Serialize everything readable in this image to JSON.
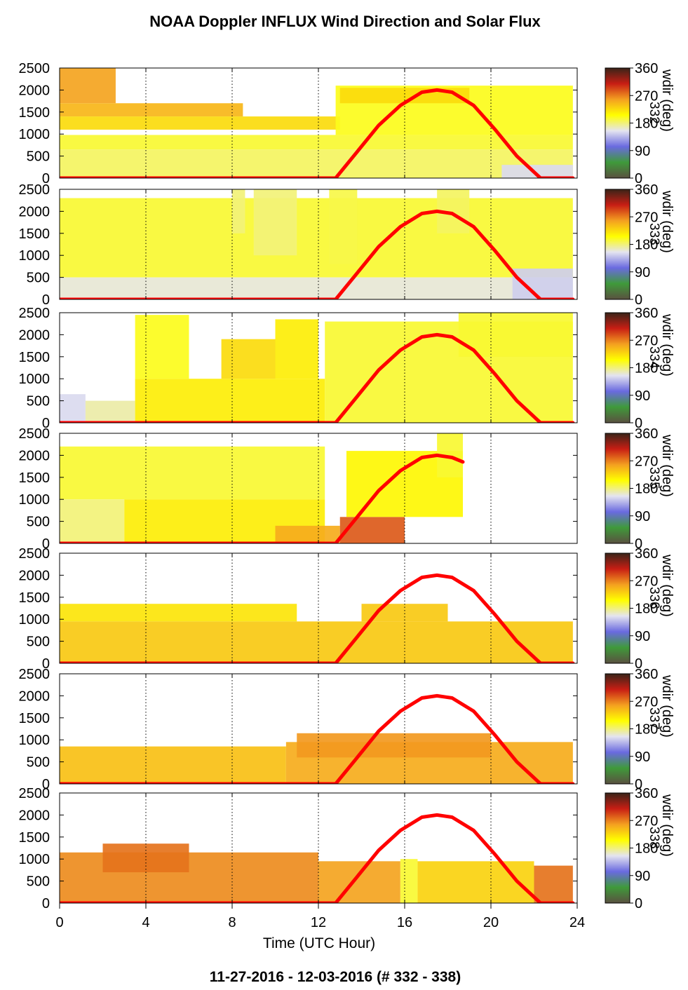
{
  "title": "NOAA Doppler INFLUX Wind Direction and Solar Flux",
  "footer": "11-27-2016 - 12-03-2016   (# 332 - 338)",
  "chart_data": {
    "type": "heatmap",
    "xlabel": "Time (UTC Hour)",
    "xlim": [
      0,
      24
    ],
    "x_ticks": [
      "0",
      "4",
      "8",
      "12",
      "16",
      "20",
      "24"
    ],
    "x_tick_values": [
      0,
      4,
      8,
      12,
      16,
      20,
      24
    ],
    "ylim": [
      0,
      2500
    ],
    "y_ticks": [
      "0",
      "500",
      "1000",
      "1500",
      "2000",
      "2500"
    ],
    "y_tick_values": [
      0,
      500,
      1000,
      1500,
      2000,
      2500
    ],
    "grid": "vertical dotted lines at 4, 8, 12, 16, 20, 24",
    "colorbar": {
      "label": "wdir (deg)",
      "ticks": [
        "0",
        "90",
        "180",
        "270",
        "360"
      ],
      "tick_values": [
        0,
        90,
        180,
        270,
        360
      ],
      "colors": [
        "#5a5040",
        "#3f9a3a",
        "#6a6ae0",
        "#e4e4f0",
        "#ffff00",
        "#f4a020",
        "#c81e14",
        "#3a2418"
      ]
    },
    "solar_flux_color": "#ff0000",
    "panels": [
      {
        "day_label": "332",
        "solar_flux": {
          "x": [
            0,
            12.8,
            13.8,
            14.8,
            15.8,
            16.8,
            17.5,
            18.2,
            19.2,
            20.2,
            21.2,
            22.3,
            23.8
          ],
          "y": [
            0,
            0,
            600,
            1200,
            1650,
            1950,
            2000,
            1950,
            1650,
            1100,
            500,
            0,
            0
          ]
        },
        "wind_direction": [
          {
            "x0": 0,
            "x1": 2.6,
            "y0": 1700,
            "y1": 2550,
            "wdir": 255
          },
          {
            "x0": 0,
            "x1": 8.5,
            "y0": 1400,
            "y1": 1700,
            "wdir": 245
          },
          {
            "x0": 0,
            "x1": 13,
            "y0": 1100,
            "y1": 1400,
            "wdir": 225
          },
          {
            "x0": 0,
            "x1": 23.8,
            "y0": 650,
            "y1": 980,
            "wdir": 195
          },
          {
            "x0": 0,
            "x1": 23.8,
            "y0": 0,
            "y1": 650,
            "wdir": 185
          },
          {
            "x0": 12.8,
            "x1": 23.8,
            "y0": 980,
            "y1": 2100,
            "wdir": 200
          },
          {
            "x0": 13,
            "x1": 19,
            "y0": 1700,
            "y1": 2050,
            "wdir": 225
          },
          {
            "x0": 20.5,
            "x1": 23.8,
            "y0": 0,
            "y1": 300,
            "wdir": 150
          }
        ]
      },
      {
        "day_label": "333",
        "solar_flux": {
          "x": [
            0,
            12.8,
            13.8,
            14.8,
            15.8,
            16.8,
            17.5,
            18.2,
            19.2,
            20.2,
            21.2,
            22.3,
            23.8
          ],
          "y": [
            0,
            0,
            600,
            1200,
            1650,
            1950,
            2000,
            1950,
            1650,
            1100,
            500,
            0,
            0
          ]
        },
        "wind_direction": [
          {
            "x0": 0,
            "x1": 23.8,
            "y0": 500,
            "y1": 2300,
            "wdir": 195
          },
          {
            "x0": 0,
            "x1": 23.8,
            "y0": 0,
            "y1": 500,
            "wdir": 160
          },
          {
            "x0": 9,
            "x1": 11,
            "y0": 1000,
            "y1": 2500,
            "wdir": 180
          },
          {
            "x0": 8,
            "x1": 8.6,
            "y0": 1500,
            "y1": 2500,
            "wdir": 180
          },
          {
            "x0": 12.5,
            "x1": 13.8,
            "y0": 800,
            "y1": 2500,
            "wdir": 190
          },
          {
            "x0": 17.5,
            "x1": 19,
            "y0": 1500,
            "y1": 2500,
            "wdir": 185
          },
          {
            "x0": 21,
            "x1": 23.8,
            "y0": 0,
            "y1": 700,
            "wdir": 145
          }
        ]
      },
      {
        "day_label": "334",
        "solar_flux": {
          "x": [
            0,
            12.8,
            13.8,
            14.8,
            15.8,
            16.8,
            17.5,
            18.2,
            19.2,
            20.2,
            21.2,
            22.3,
            23.8
          ],
          "y": [
            0,
            0,
            600,
            1200,
            1650,
            1950,
            2000,
            1950,
            1650,
            1100,
            500,
            0,
            0
          ]
        },
        "wind_direction": [
          {
            "x0": 0,
            "x1": 1.2,
            "y0": 0,
            "y1": 650,
            "wdir": 150
          },
          {
            "x0": 1.2,
            "x1": 3.5,
            "y0": 0,
            "y1": 500,
            "wdir": 170
          },
          {
            "x0": 3.5,
            "x1": 12.3,
            "y0": 0,
            "y1": 1000,
            "wdir": 215
          },
          {
            "x0": 3.5,
            "x1": 6,
            "y0": 1000,
            "y1": 2450,
            "wdir": 200
          },
          {
            "x0": 7.5,
            "x1": 10,
            "y0": 1000,
            "y1": 1900,
            "wdir": 225
          },
          {
            "x0": 10,
            "x1": 12,
            "y0": 1000,
            "y1": 2350,
            "wdir": 215
          },
          {
            "x0": 12.3,
            "x1": 23.8,
            "y0": 0,
            "y1": 2300,
            "wdir": 195
          },
          {
            "x0": 18.5,
            "x1": 23.8,
            "y0": 1500,
            "y1": 2500,
            "wdir": 195
          }
        ]
      },
      {
        "day_label": "335",
        "solar_flux": {
          "x": [
            0,
            12.8,
            13.8,
            14.8,
            15.8,
            16.8,
            17.5,
            18.2,
            18.7
          ],
          "y": [
            0,
            0,
            600,
            1200,
            1650,
            1950,
            2000,
            1950,
            1850
          ]
        },
        "wind_direction": [
          {
            "x0": 0,
            "x1": 12.3,
            "y0": 1000,
            "y1": 2200,
            "wdir": 195
          },
          {
            "x0": 0,
            "x1": 3,
            "y0": 0,
            "y1": 1000,
            "wdir": 180
          },
          {
            "x0": 3,
            "x1": 12.3,
            "y0": 0,
            "y1": 1000,
            "wdir": 215
          },
          {
            "x0": 10,
            "x1": 13,
            "y0": 0,
            "y1": 400,
            "wdir": 250
          },
          {
            "x0": 13,
            "x1": 16,
            "y0": 0,
            "y1": 600,
            "wdir": 285
          },
          {
            "x0": 13.3,
            "x1": 18.7,
            "y0": 600,
            "y1": 2100,
            "wdir": 210
          },
          {
            "x0": 17.5,
            "x1": 18.7,
            "y0": 1500,
            "y1": 2500,
            "wdir": 195
          }
        ]
      },
      {
        "day_label": "336",
        "solar_flux": {
          "x": [
            0,
            12.8,
            13.8,
            14.8,
            15.8,
            16.8,
            17.5,
            18.2,
            19.2,
            20.2,
            21.2,
            22.3,
            23.8
          ],
          "y": [
            0,
            0,
            600,
            1200,
            1650,
            1950,
            2000,
            1950,
            1650,
            1100,
            500,
            0,
            0
          ]
        },
        "wind_direction": [
          {
            "x0": 0,
            "x1": 23.8,
            "y0": 0,
            "y1": 950,
            "wdir": 235
          },
          {
            "x0": 0,
            "x1": 11,
            "y0": 950,
            "y1": 1350,
            "wdir": 220
          },
          {
            "x0": 14,
            "x1": 18,
            "y0": 950,
            "y1": 1350,
            "wdir": 235
          }
        ]
      },
      {
        "day_label": "337",
        "solar_flux": {
          "x": [
            0,
            12.8,
            13.8,
            14.8,
            15.8,
            16.8,
            17.5,
            18.2,
            19.2,
            20.2,
            21.2,
            22.3,
            23.8
          ],
          "y": [
            0,
            0,
            600,
            1200,
            1650,
            1950,
            2000,
            1950,
            1650,
            1100,
            500,
            0,
            0
          ]
        },
        "wind_direction": [
          {
            "x0": 0,
            "x1": 10.5,
            "y0": 0,
            "y1": 850,
            "wdir": 240
          },
          {
            "x0": 10.5,
            "x1": 23.8,
            "y0": 0,
            "y1": 950,
            "wdir": 250
          },
          {
            "x0": 11,
            "x1": 20,
            "y0": 600,
            "y1": 1150,
            "wdir": 260
          }
        ]
      },
      {
        "day_label": "338",
        "solar_flux": {
          "x": [
            0,
            12.8,
            13.8,
            14.8,
            15.8,
            16.8,
            17.5,
            18.2,
            19.2,
            20.2,
            21.2,
            22.3,
            23.8
          ],
          "y": [
            0,
            0,
            600,
            1200,
            1650,
            1950,
            2000,
            1950,
            1650,
            1100,
            500,
            0,
            0
          ]
        },
        "wind_direction": [
          {
            "x0": 0,
            "x1": 12,
            "y0": 0,
            "y1": 1150,
            "wdir": 265
          },
          {
            "x0": 2,
            "x1": 6,
            "y0": 700,
            "y1": 1350,
            "wdir": 275
          },
          {
            "x0": 12,
            "x1": 15.8,
            "y0": 0,
            "y1": 950,
            "wdir": 255
          },
          {
            "x0": 15.8,
            "x1": 16.6,
            "y0": 0,
            "y1": 1000,
            "wdir": 195
          },
          {
            "x0": 16.6,
            "x1": 22,
            "y0": 0,
            "y1": 950,
            "wdir": 230
          },
          {
            "x0": 22,
            "x1": 23.8,
            "y0": 0,
            "y1": 850,
            "wdir": 275
          }
        ]
      }
    ]
  }
}
